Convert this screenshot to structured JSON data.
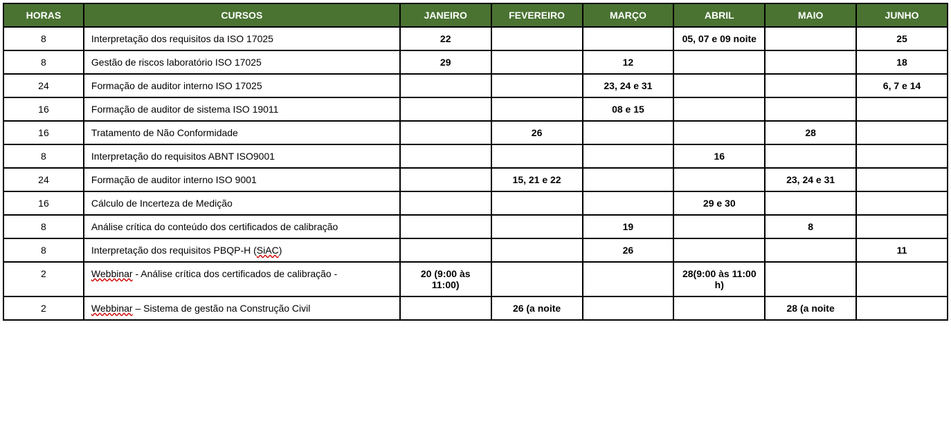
{
  "table": {
    "header_bg": "#4a7332",
    "header_fg": "#ffffff",
    "border_color": "#000000",
    "font_family": "Verdana, Arial, sans-serif",
    "font_size": 14,
    "columns": [
      "HORAS",
      "CURSOS",
      "JANEIRO",
      "FEVEREIRO",
      "MARÇO",
      "ABRIL",
      "MAIO",
      "JUNHO"
    ],
    "rows": [
      {
        "horas": "8",
        "curso": "Interpretação dos requisitos da ISO 17025",
        "janeiro": "22",
        "fevereiro": "",
        "marco": "",
        "abril": "05, 07 e 09 noite",
        "maio": "",
        "junho": "25"
      },
      {
        "horas": "8",
        "curso": "Gestão de riscos laboratório ISO 17025",
        "janeiro": "29",
        "fevereiro": "",
        "marco": "12",
        "abril": "",
        "maio": "",
        "junho": "18"
      },
      {
        "horas": "24",
        "curso": "Formação de auditor interno ISO 17025",
        "janeiro": "",
        "fevereiro": "",
        "marco": "23, 24 e 31",
        "abril": "",
        "maio": "",
        "junho": "6, 7  e 14"
      },
      {
        "horas": "16",
        "curso": "Formação de auditor de sistema ISO 19011",
        "janeiro": "",
        "fevereiro": "",
        "marco": "08 e 15",
        "abril": "",
        "maio": "",
        "junho": ""
      },
      {
        "horas": "16",
        "curso": "Tratamento de Não Conformidade",
        "janeiro": "",
        "fevereiro": "26",
        "marco": "",
        "abril": "",
        "maio": "28",
        "junho": ""
      },
      {
        "horas": "8",
        "curso": "Interpretação do requisitos ABNT ISO9001",
        "janeiro": "",
        "fevereiro": "",
        "marco": "",
        "abril": "16",
        "maio": "",
        "junho": ""
      },
      {
        "horas": "24",
        "curso": "Formação de auditor interno ISO 9001",
        "janeiro": "",
        "fevereiro": "15, 21 e 22",
        "marco": "",
        "abril": "",
        "maio": "23, 24 e 31",
        "junho": ""
      },
      {
        "horas": "16",
        "curso": "Cálculo de Incerteza de Medição",
        "janeiro": "",
        "fevereiro": "",
        "marco": "",
        "abril": "29 e 30",
        "maio": "",
        "junho": ""
      },
      {
        "horas": "8",
        "curso": "Análise crítica do conteúdo dos certificados de calibração",
        "janeiro": "",
        "fevereiro": "",
        "marco": "19",
        "abril": "",
        "maio": "8",
        "junho": ""
      },
      {
        "horas": "8",
        "curso_parts": [
          {
            "t": "Interpretação dos requisitos PBQP-H ("
          },
          {
            "t": "SiAC",
            "u": true
          },
          {
            "t": ")"
          }
        ],
        "janeiro": "",
        "fevereiro": "",
        "marco": "26",
        "abril": "",
        "maio": "",
        "junho": "11"
      },
      {
        "horas": "2",
        "curso_parts": [
          {
            "t": "Webbinar",
            "u": true
          },
          {
            "t": " - Análise crítica dos certificados de calibração -"
          }
        ],
        "janeiro": "20 (9:00 às 11:00)",
        "fevereiro": "",
        "marco": "",
        "abril": "28(9:00 às 11:00 h)",
        "maio": "",
        "junho": ""
      },
      {
        "horas": "2",
        "curso_parts": [
          {
            "t": "Webbinar",
            "u": true
          },
          {
            "t": " – Sistema de gestão na Construção Civil"
          }
        ],
        "janeiro": "",
        "fevereiro": "26 (a noite",
        "marco": "",
        "abril": "",
        "maio": "28 (a noite",
        "junho": ""
      }
    ]
  }
}
